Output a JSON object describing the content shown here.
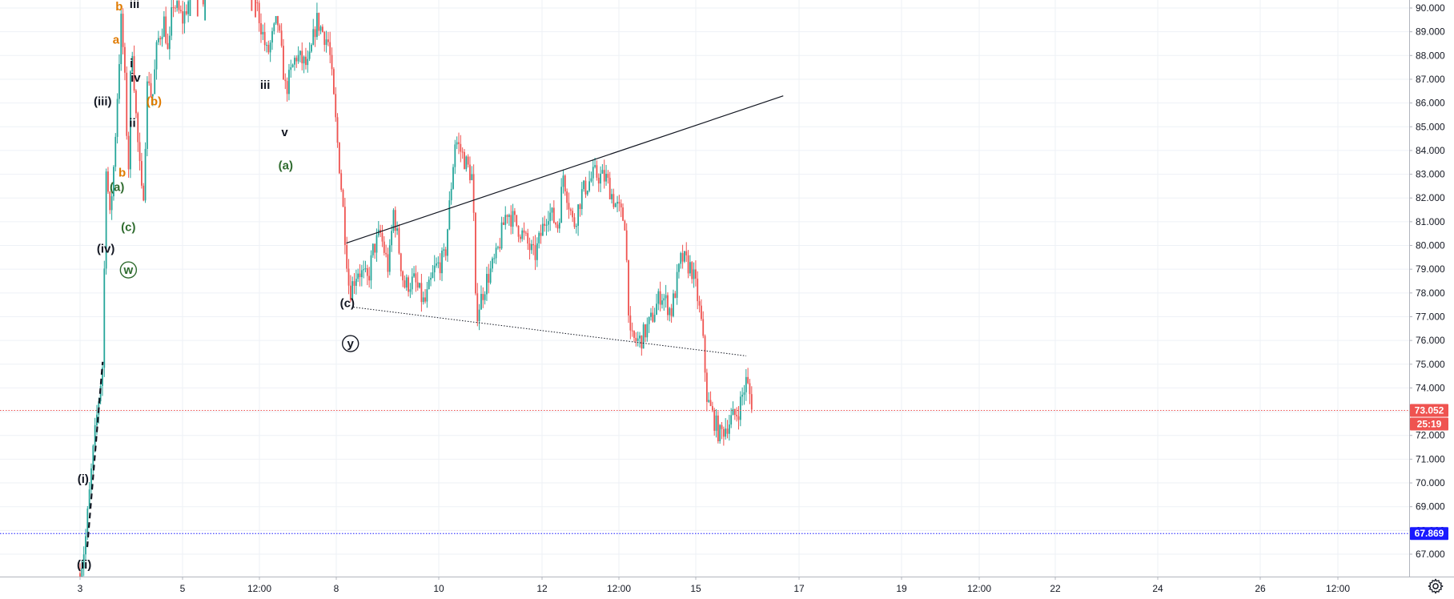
{
  "chart_data": {
    "type": "candlestick",
    "x_labels": [
      "3",
      "5",
      "12:00",
      "8",
      "10",
      "12",
      "12:00",
      "15",
      "17",
      "19",
      "12:00",
      "22",
      "24",
      "26",
      "12:00"
    ],
    "y_ticks": [
      "67.000",
      "68.000",
      "69.000",
      "70.000",
      "71.000",
      "72.000",
      "73.000",
      "74.000",
      "75.000",
      "76.000",
      "77.000",
      "78.000",
      "79.000",
      "80.000",
      "81.000",
      "82.000",
      "83.000",
      "84.000",
      "85.000",
      "86.000",
      "87.000",
      "88.000",
      "89.000",
      "90.000"
    ],
    "ylim": [
      66.0,
      90.3
    ],
    "grid": true,
    "colors": {
      "up": "#26a69a",
      "down": "#ef5350",
      "grid": "#eef1f6",
      "axis": "#b2b5be"
    },
    "price_lines": [
      {
        "label": "73.052",
        "value": 73.052,
        "color": "#ef5350",
        "style": "dotted"
      },
      {
        "label": "67.869",
        "value": 67.869,
        "color": "#1a1aff",
        "style": "dotted"
      }
    ],
    "countdown_label": "25:19",
    "path": [
      {
        "t": 0.0,
        "p": 66.2
      },
      {
        "t": 0.05,
        "p": 67.5
      },
      {
        "t": 0.12,
        "p": 71.0
      },
      {
        "t": 0.18,
        "p": 73.5
      },
      {
        "t": 0.22,
        "p": 75.0
      },
      {
        "t": 0.26,
        "p": 85.0
      },
      {
        "t": 0.28,
        "p": 80.5
      },
      {
        "t": 0.33,
        "p": 83.5
      },
      {
        "t": 0.4,
        "p": 89.5
      },
      {
        "t": 0.43,
        "p": 87.5
      },
      {
        "t": 0.47,
        "p": 83.0
      },
      {
        "t": 0.5,
        "p": 89.0
      },
      {
        "t": 0.55,
        "p": 85.0
      },
      {
        "t": 0.61,
        "p": 81.5
      },
      {
        "t": 0.66,
        "p": 87.5
      },
      {
        "t": 0.7,
        "p": 86.0
      },
      {
        "t": 0.75,
        "p": 88.5
      },
      {
        "t": 0.82,
        "p": 89.5
      },
      {
        "t": 0.86,
        "p": 87.8
      },
      {
        "t": 0.9,
        "p": 90.3
      },
      {
        "t": 1.0,
        "p": 89.5
      },
      {
        "t": 1.1,
        "p": 91.0
      },
      {
        "t": 1.2,
        "p": 90.8
      },
      {
        "t": 1.3,
        "p": 91.5
      },
      {
        "t": 1.4,
        "p": 92.0
      },
      {
        "t": 1.55,
        "p": 91.0
      },
      {
        "t": 1.7,
        "p": 90.5
      },
      {
        "t": 1.82,
        "p": 88.0
      },
      {
        "t": 1.92,
        "p": 89.5
      },
      {
        "t": 2.0,
        "p": 86.5
      },
      {
        "t": 2.1,
        "p": 88.0
      },
      {
        "t": 2.22,
        "p": 87.5
      },
      {
        "t": 2.3,
        "p": 89.5
      },
      {
        "t": 2.42,
        "p": 88.5
      },
      {
        "t": 2.48,
        "p": 85.5
      },
      {
        "t": 2.55,
        "p": 82.0
      },
      {
        "t": 2.62,
        "p": 78.0
      },
      {
        "t": 2.7,
        "p": 79.0
      },
      {
        "t": 2.8,
        "p": 78.5
      },
      {
        "t": 2.85,
        "p": 79.8
      },
      {
        "t": 2.92,
        "p": 80.5
      },
      {
        "t": 3.0,
        "p": 79.0
      },
      {
        "t": 3.05,
        "p": 81.5
      },
      {
        "t": 3.15,
        "p": 78.3
      },
      {
        "t": 3.25,
        "p": 78.5
      },
      {
        "t": 3.35,
        "p": 77.5
      },
      {
        "t": 3.45,
        "p": 79.0
      },
      {
        "t": 3.55,
        "p": 79.5
      },
      {
        "t": 3.65,
        "p": 84.5
      },
      {
        "t": 3.75,
        "p": 83.5
      },
      {
        "t": 3.82,
        "p": 82.8
      },
      {
        "t": 3.85,
        "p": 77.0
      },
      {
        "t": 3.95,
        "p": 78.5
      },
      {
        "t": 4.05,
        "p": 79.5
      },
      {
        "t": 4.15,
        "p": 81.5
      },
      {
        "t": 4.3,
        "p": 80.5
      },
      {
        "t": 4.42,
        "p": 79.5
      },
      {
        "t": 4.55,
        "p": 81.5
      },
      {
        "t": 4.65,
        "p": 80.8
      },
      {
        "t": 4.7,
        "p": 83.0
      },
      {
        "t": 4.8,
        "p": 80.8
      },
      {
        "t": 4.88,
        "p": 82.2
      },
      {
        "t": 5.0,
        "p": 83.0
      },
      {
        "t": 5.12,
        "p": 82.8
      },
      {
        "t": 5.2,
        "p": 81.8
      },
      {
        "t": 5.3,
        "p": 81.0
      },
      {
        "t": 5.35,
        "p": 76.0
      },
      {
        "t": 5.45,
        "p": 76.0
      },
      {
        "t": 5.55,
        "p": 76.8
      },
      {
        "t": 5.65,
        "p": 78.0
      },
      {
        "t": 5.75,
        "p": 77.2
      },
      {
        "t": 5.85,
        "p": 79.5
      },
      {
        "t": 5.95,
        "p": 79.0
      },
      {
        "t": 6.0,
        "p": 78.0
      },
      {
        "t": 6.05,
        "p": 76.5
      },
      {
        "t": 6.1,
        "p": 73.5
      },
      {
        "t": 6.22,
        "p": 72.0
      },
      {
        "t": 6.3,
        "p": 72.5
      },
      {
        "t": 6.4,
        "p": 73.0
      },
      {
        "t": 6.48,
        "p": 74.3
      },
      {
        "t": 6.55,
        "p": 73.1
      }
    ],
    "candle_spacing": 2.33,
    "trendlines": [
      {
        "name": "upper-trendline",
        "from": {
          "t": 2.59,
          "p": 80.1
        },
        "to": {
          "t": 6.84,
          "p": 86.3
        },
        "style": "solid"
      },
      {
        "name": "lower-trendline",
        "from": {
          "t": 2.66,
          "p": 77.4
        },
        "to": {
          "t": 6.48,
          "p": 75.35
        },
        "style": "dotted"
      },
      {
        "name": "early-trendline",
        "from": {
          "t": 0.07,
          "p": 67.3
        },
        "to": {
          "t": 0.22,
          "p": 75.1
        },
        "style": "dashed"
      }
    ],
    "annotations": [
      {
        "name": "wave-i-paren",
        "text": "(i)",
        "t": 0.03,
        "p": 70.0,
        "color": "#131722"
      },
      {
        "name": "wave-ii-paren",
        "text": "(ii)",
        "t": 0.04,
        "p": 66.4,
        "color": "#131722"
      },
      {
        "name": "wave-iii-paren",
        "text": "(iii)",
        "t": 0.22,
        "p": 85.9,
        "color": "#131722"
      },
      {
        "name": "wave-iv-paren",
        "text": "(iv)",
        "t": 0.25,
        "p": 79.7,
        "color": "#131722"
      },
      {
        "name": "wave-a-top",
        "text": "a",
        "t": 0.35,
        "p": 88.5,
        "color": "#e07b00"
      },
      {
        "name": "wave-b-top",
        "text": "b",
        "t": 0.38,
        "p": 89.9,
        "color": "#e07b00"
      },
      {
        "name": "wave-b-lower",
        "text": "b",
        "t": 0.41,
        "p": 82.9,
        "color": "#e07b00"
      },
      {
        "name": "wave-a-green",
        "text": "(a)",
        "t": 0.36,
        "p": 82.3,
        "color": "#2e6b2e"
      },
      {
        "name": "wave-c-green",
        "text": "(c)",
        "t": 0.47,
        "p": 80.6,
        "color": "#2e6b2e"
      },
      {
        "name": "wave-w-circled",
        "text": "w",
        "t": 0.47,
        "p": 78.8,
        "color": "#2e6b2e",
        "circled": true
      },
      {
        "name": "wave-iii-top",
        "text": "iii",
        "t": 0.53,
        "p": 90.0,
        "color": "#131722"
      },
      {
        "name": "wave-i",
        "text": "i",
        "t": 0.5,
        "p": 87.5,
        "color": "#131722"
      },
      {
        "name": "wave-iv",
        "text": "iv",
        "t": 0.54,
        "p": 86.9,
        "color": "#131722"
      },
      {
        "name": "wave-ii",
        "text": "ii",
        "t": 0.51,
        "p": 85.0,
        "color": "#131722"
      },
      {
        "name": "wave-b-orange",
        "text": "(b)",
        "t": 0.72,
        "p": 85.9,
        "color": "#e07b00"
      },
      {
        "name": "wave-iii",
        "text": "iii",
        "t": 1.8,
        "p": 86.6,
        "color": "#131722"
      },
      {
        "name": "wave-v",
        "text": "v",
        "t": 1.99,
        "p": 84.6,
        "color": "#131722"
      },
      {
        "name": "wave-a-paren",
        "text": "(a)",
        "t": 2.0,
        "p": 83.2,
        "color": "#2e6b2e"
      },
      {
        "name": "wave-c-paren",
        "text": "(c)",
        "t": 2.6,
        "p": 77.4,
        "color": "#131722"
      },
      {
        "name": "wave-y-circled",
        "text": "y",
        "t": 2.63,
        "p": 75.7,
        "color": "#131722",
        "circled": true
      }
    ]
  },
  "ui": {
    "settings_icon": "gear-icon"
  }
}
